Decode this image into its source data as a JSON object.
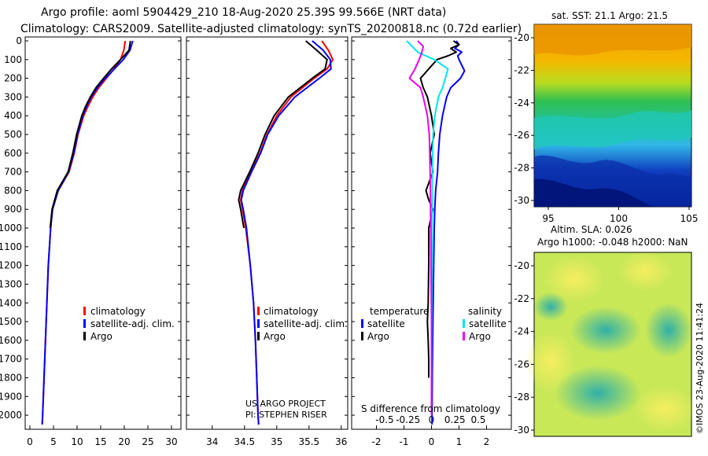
{
  "header": {
    "line1": "Argo profile: aoml 5904429_210 18-Aug-2020 25.39S 99.566E (NRT data)",
    "line2": "Climatology: CARS2009. Satellite-adjusted climatology: synTS_20200818.nc (0.72d earlier)"
  },
  "colors": {
    "climatology": "#ff0000",
    "satellite": "#0000ff",
    "argo": "#000000",
    "sat_salinity": "#00e5ee",
    "argo_salinity": "#ee00ee"
  },
  "depth_axis": {
    "ticks": [
      0,
      100,
      200,
      300,
      400,
      500,
      600,
      700,
      800,
      900,
      1000,
      1100,
      1200,
      1300,
      1400,
      1500,
      1600,
      1700,
      1800,
      1900,
      2000
    ]
  },
  "chart_data": [
    {
      "type": "line",
      "name": "temperature-profile",
      "xlim": [
        -1,
        32
      ],
      "ylim": [
        2060,
        0
      ],
      "xticks": [
        "0",
        "5",
        "10",
        "15",
        "20",
        "25",
        "30"
      ],
      "xtick_values": [
        0,
        5,
        10,
        15,
        20,
        25,
        30
      ],
      "legend": [
        "climatology",
        "satellite-adj. clim.",
        "Argo"
      ],
      "series": [
        {
          "name": "climatology",
          "color": "#ff0000",
          "depth": [
            0,
            50,
            100,
            150,
            200,
            250,
            300,
            350,
            400,
            500,
            600,
            700,
            800,
            900,
            1000,
            1200,
            1400,
            1600,
            1800,
            2000,
            2050
          ],
          "values": [
            20.2,
            19.9,
            19.2,
            17.8,
            16.2,
            14.6,
            13.3,
            12.3,
            11.4,
            10.2,
            9.4,
            8.3,
            6.0,
            4.8,
            4.4,
            3.9,
            3.6,
            3.3,
            3.0,
            2.7,
            2.6
          ]
        },
        {
          "name": "satellite-adj. clim.",
          "color": "#0000ff",
          "depth": [
            0,
            50,
            100,
            150,
            200,
            250,
            300,
            350,
            400,
            500,
            600,
            700,
            800,
            900,
            1000,
            1200,
            1400,
            1600,
            1800,
            2000,
            2050
          ],
          "values": [
            21.8,
            21.2,
            19.8,
            17.9,
            16.0,
            14.3,
            13.0,
            12.0,
            11.2,
            10.1,
            9.3,
            8.2,
            6.0,
            4.8,
            4.4,
            3.9,
            3.6,
            3.3,
            3.0,
            2.7,
            2.6
          ]
        },
        {
          "name": "Argo",
          "color": "#000000",
          "depth": [
            0,
            50,
            100,
            150,
            200,
            250,
            300,
            350,
            400,
            500,
            600,
            700,
            800,
            900,
            1000
          ],
          "values": [
            21.3,
            21.0,
            19.2,
            17.3,
            15.6,
            14.0,
            12.8,
            11.8,
            11.0,
            9.9,
            9.1,
            8.1,
            5.8,
            4.7,
            4.3
          ]
        }
      ]
    },
    {
      "type": "line",
      "name": "salinity-profile",
      "xlim": [
        33.6,
        36.1
      ],
      "ylim": [
        2060,
        0
      ],
      "xticks": [
        "34",
        "34.5",
        "35",
        "35.5",
        "36"
      ],
      "xtick_values": [
        34,
        34.5,
        35,
        35.5,
        36
      ],
      "legend": [
        "climatology",
        "satellite-adj. clim.",
        "Argo"
      ],
      "footer": [
        "US ARGO PROJECT",
        "PI: STEPHEN RISER"
      ],
      "series": [
        {
          "name": "climatology",
          "color": "#ff0000",
          "depth": [
            0,
            50,
            100,
            150,
            200,
            300,
            400,
            500,
            600,
            700,
            800,
            850,
            900,
            1000,
            1200,
            1400,
            1600,
            1800,
            2000,
            2050
          ],
          "values": [
            35.7,
            35.8,
            35.87,
            35.78,
            35.58,
            35.22,
            35.0,
            34.85,
            34.74,
            34.6,
            34.47,
            34.44,
            34.47,
            34.52,
            34.59,
            34.64,
            34.67,
            34.69,
            34.71,
            34.72
          ]
        },
        {
          "name": "satellite-adj. clim.",
          "color": "#0000ff",
          "depth": [
            0,
            50,
            100,
            150,
            200,
            300,
            400,
            500,
            600,
            700,
            800,
            850,
            900,
            1000,
            1200,
            1400,
            1600,
            1800,
            2000,
            2050
          ],
          "values": [
            35.55,
            35.72,
            35.83,
            35.84,
            35.66,
            35.28,
            35.03,
            34.86,
            34.75,
            34.61,
            34.48,
            34.45,
            34.48,
            34.53,
            34.59,
            34.64,
            34.67,
            34.69,
            34.71,
            34.72
          ]
        },
        {
          "name": "Argo",
          "color": "#000000",
          "depth": [
            0,
            50,
            100,
            150,
            200,
            300,
            400,
            500,
            600,
            700,
            800,
            850,
            900,
            1000
          ],
          "values": [
            35.45,
            35.62,
            35.78,
            35.75,
            35.55,
            35.18,
            34.96,
            34.82,
            34.71,
            34.58,
            34.44,
            34.41,
            34.44,
            34.49
          ]
        }
      ]
    },
    {
      "type": "line",
      "name": "difference-profile",
      "xlim": [
        -2.9,
        2.9
      ],
      "ylim": [
        2060,
        0
      ],
      "xticks": [
        "-2",
        "-1",
        "0",
        "1",
        "2"
      ],
      "xtick_values": [
        -2,
        -1,
        0,
        1,
        2
      ],
      "s_ticks": [
        "-0.5",
        "-0.25",
        "0",
        "0.25",
        "0.5"
      ],
      "s_tick_values": [
        -1.7,
        -0.85,
        0,
        0.85,
        1.7
      ],
      "s_axis_label": "S difference from climatology",
      "legend_temperature": {
        "title": "temperature",
        "items": [
          "satellite",
          "Argo"
        ]
      },
      "legend_salinity": {
        "title": "salinity",
        "items": [
          "satellite",
          "Argo"
        ]
      },
      "series": [
        {
          "name": "temperature satellite",
          "color": "#0000ff",
          "depth": [
            0,
            20,
            40,
            60,
            80,
            100,
            130,
            160,
            200,
            250,
            300,
            400,
            500,
            600,
            700,
            800,
            900,
            1000,
            1200,
            1500,
            1800,
            2000,
            2050
          ],
          "values": [
            0.9,
            1.0,
            0.85,
            1.1,
            0.95,
            1.0,
            1.1,
            1.2,
            1.05,
            0.7,
            0.55,
            0.4,
            0.3,
            0.25,
            0.22,
            0.15,
            0.12,
            0.1,
            0.08,
            0.05,
            0.03,
            0.02,
            0.02
          ]
        },
        {
          "name": "temperature Argo",
          "color": "#000000",
          "depth": [
            0,
            20,
            40,
            60,
            80,
            100,
            150,
            200,
            250,
            300,
            400,
            500,
            600,
            700,
            800,
            850,
            900,
            1000,
            1200,
            1400,
            1500,
            1600,
            1700,
            1800
          ],
          "values": [
            0.8,
            1.0,
            0.7,
            0.9,
            0.6,
            0.2,
            -0.1,
            -0.4,
            -0.3,
            -0.15,
            0.0,
            0.1,
            -0.05,
            0.05,
            -0.2,
            -0.1,
            0.05,
            -0.1,
            -0.1,
            -0.12,
            -0.15,
            -0.12,
            -0.1,
            -0.1
          ]
        },
        {
          "name": "salinity satellite",
          "color": "#00e5ee",
          "depth": [
            0,
            30,
            60,
            100,
            150,
            200,
            250,
            300,
            400,
            500,
            700,
            1000,
            1500,
            2000
          ],
          "values": [
            -0.9,
            -0.7,
            -0.5,
            0.1,
            0.6,
            0.5,
            0.4,
            0.25,
            0.12,
            0.06,
            0.03,
            0.02,
            0.01,
            0.0
          ]
        },
        {
          "name": "salinity Argo",
          "color": "#ee00ee",
          "depth": [
            0,
            30,
            60,
            100,
            150,
            200,
            250,
            300,
            400,
            500,
            700,
            1000,
            1500,
            2000
          ],
          "values": [
            -0.5,
            -0.3,
            -0.35,
            -0.45,
            -0.6,
            -0.8,
            -0.4,
            -0.3,
            -0.15,
            -0.08,
            -0.05,
            -0.03,
            0.0,
            0.0
          ]
        }
      ]
    }
  ],
  "maps": {
    "sst_title": "sat. SST: 21.1 Argo: 21.5",
    "sst_yticks": [
      "-20",
      "-22",
      "-24",
      "-26",
      "-28",
      "-30"
    ],
    "sst_xticks": [
      "95",
      "100",
      "105"
    ],
    "sla_title1": "Altim. SLA: 0.026",
    "sla_title2": "Argo h1000: -0.048 h2000: NaN",
    "sla_yticks": [
      "-20",
      "-22",
      "-24",
      "-26",
      "-28",
      "-30"
    ],
    "credit": "©IMOS 23-Aug-2020 11:41:24"
  }
}
